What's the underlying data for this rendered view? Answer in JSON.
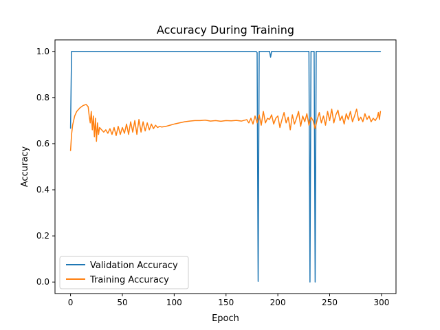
{
  "chart_data": {
    "type": "line",
    "title": "Accuracy During Training",
    "xlabel": "Epoch",
    "ylabel": "Accuracy",
    "xlim": [
      -15,
      314
    ],
    "ylim": [
      -0.05,
      1.05
    ],
    "xticks": [
      0,
      50,
      100,
      150,
      200,
      250,
      300
    ],
    "yticks": [
      0.0,
      0.2,
      0.4,
      0.6,
      0.8,
      1.0
    ],
    "xtick_labels": [
      "0",
      "50",
      "100",
      "150",
      "200",
      "250",
      "300"
    ],
    "ytick_labels": [
      "0.0",
      "0.2",
      "0.4",
      "0.6",
      "0.8",
      "1.0"
    ],
    "grid": false,
    "legend_position": "lower-left",
    "series": [
      {
        "name": "Validation Accuracy",
        "color": "#1f77b4",
        "points": [
          [
            0,
            0.667
          ],
          [
            1,
            1.0
          ],
          [
            179,
            1.0
          ],
          [
            180,
            0.995
          ],
          [
            181,
            0.003
          ],
          [
            182,
            1.0
          ],
          [
            192,
            1.0
          ],
          [
            193,
            0.975
          ],
          [
            194,
            1.0
          ],
          [
            230,
            1.0
          ],
          [
            231,
            0.0
          ],
          [
            232,
            1.0
          ],
          [
            235,
            1.0
          ],
          [
            236,
            0.0
          ],
          [
            237,
            1.0
          ],
          [
            299,
            1.0
          ]
        ]
      },
      {
        "name": "Training Accuracy",
        "color": "#ff7f0e",
        "points": [
          [
            0,
            0.57
          ],
          [
            1,
            0.64
          ],
          [
            2,
            0.68
          ],
          [
            4,
            0.72
          ],
          [
            6,
            0.74
          ],
          [
            9,
            0.755
          ],
          [
            12,
            0.765
          ],
          [
            15,
            0.77
          ],
          [
            17,
            0.76
          ],
          [
            18,
            0.72
          ],
          [
            19,
            0.69
          ],
          [
            20,
            0.74
          ],
          [
            21,
            0.66
          ],
          [
            22,
            0.72
          ],
          [
            23,
            0.63
          ],
          [
            24,
            0.71
          ],
          [
            25,
            0.61
          ],
          [
            26,
            0.69
          ],
          [
            27,
            0.64
          ],
          [
            28,
            0.67
          ],
          [
            30,
            0.66
          ],
          [
            32,
            0.65
          ],
          [
            34,
            0.66
          ],
          [
            36,
            0.645
          ],
          [
            38,
            0.665
          ],
          [
            40,
            0.64
          ],
          [
            42,
            0.67
          ],
          [
            44,
            0.635
          ],
          [
            46,
            0.675
          ],
          [
            48,
            0.64
          ],
          [
            50,
            0.67
          ],
          [
            52,
            0.645
          ],
          [
            54,
            0.685
          ],
          [
            56,
            0.64
          ],
          [
            58,
            0.695
          ],
          [
            60,
            0.65
          ],
          [
            62,
            0.7
          ],
          [
            64,
            0.64
          ],
          [
            66,
            0.705
          ],
          [
            68,
            0.65
          ],
          [
            70,
            0.695
          ],
          [
            72,
            0.655
          ],
          [
            74,
            0.69
          ],
          [
            76,
            0.66
          ],
          [
            78,
            0.685
          ],
          [
            80,
            0.665
          ],
          [
            82,
            0.68
          ],
          [
            84,
            0.67
          ],
          [
            86,
            0.675
          ],
          [
            88,
            0.672
          ],
          [
            92,
            0.675
          ],
          [
            96,
            0.68
          ],
          [
            100,
            0.685
          ],
          [
            105,
            0.69
          ],
          [
            110,
            0.695
          ],
          [
            115,
            0.698
          ],
          [
            120,
            0.7
          ],
          [
            125,
            0.7
          ],
          [
            130,
            0.702
          ],
          [
            135,
            0.698
          ],
          [
            140,
            0.7
          ],
          [
            145,
            0.697
          ],
          [
            150,
            0.7
          ],
          [
            155,
            0.699
          ],
          [
            160,
            0.701
          ],
          [
            165,
            0.698
          ],
          [
            170,
            0.704
          ],
          [
            172,
            0.69
          ],
          [
            174,
            0.71
          ],
          [
            176,
            0.685
          ],
          [
            178,
            0.72
          ],
          [
            180,
            0.69
          ],
          [
            182,
            0.725
          ],
          [
            184,
            0.68
          ],
          [
            186,
            0.74
          ],
          [
            188,
            0.69
          ],
          [
            190,
            0.71
          ],
          [
            192,
            0.705
          ],
          [
            194,
            0.725
          ],
          [
            196,
            0.685
          ],
          [
            198,
            0.71
          ],
          [
            200,
            0.72
          ],
          [
            202,
            0.67
          ],
          [
            204,
            0.705
          ],
          [
            206,
            0.735
          ],
          [
            208,
            0.69
          ],
          [
            210,
            0.715
          ],
          [
            212,
            0.66
          ],
          [
            214,
            0.725
          ],
          [
            216,
            0.685
          ],
          [
            218,
            0.71
          ],
          [
            220,
            0.74
          ],
          [
            222,
            0.675
          ],
          [
            224,
            0.72
          ],
          [
            226,
            0.695
          ],
          [
            228,
            0.73
          ],
          [
            230,
            0.68
          ],
          [
            232,
            0.715
          ],
          [
            234,
            0.7
          ],
          [
            236,
            0.665
          ],
          [
            238,
            0.705
          ],
          [
            240,
            0.735
          ],
          [
            242,
            0.69
          ],
          [
            244,
            0.72
          ],
          [
            246,
            0.68
          ],
          [
            248,
            0.74
          ],
          [
            250,
            0.7
          ],
          [
            252,
            0.75
          ],
          [
            254,
            0.69
          ],
          [
            256,
            0.725
          ],
          [
            258,
            0.745
          ],
          [
            260,
            0.7
          ],
          [
            262,
            0.72
          ],
          [
            264,
            0.685
          ],
          [
            266,
            0.73
          ],
          [
            268,
            0.705
          ],
          [
            270,
            0.74
          ],
          [
            272,
            0.695
          ],
          [
            274,
            0.72
          ],
          [
            276,
            0.75
          ],
          [
            278,
            0.7
          ],
          [
            280,
            0.715
          ],
          [
            282,
            0.695
          ],
          [
            284,
            0.73
          ],
          [
            286,
            0.705
          ],
          [
            288,
            0.72
          ],
          [
            290,
            0.695
          ],
          [
            292,
            0.71
          ],
          [
            294,
            0.7
          ],
          [
            296,
            0.715
          ],
          [
            297,
            0.735
          ],
          [
            298,
            0.705
          ],
          [
            299,
            0.74
          ]
        ]
      }
    ]
  }
}
